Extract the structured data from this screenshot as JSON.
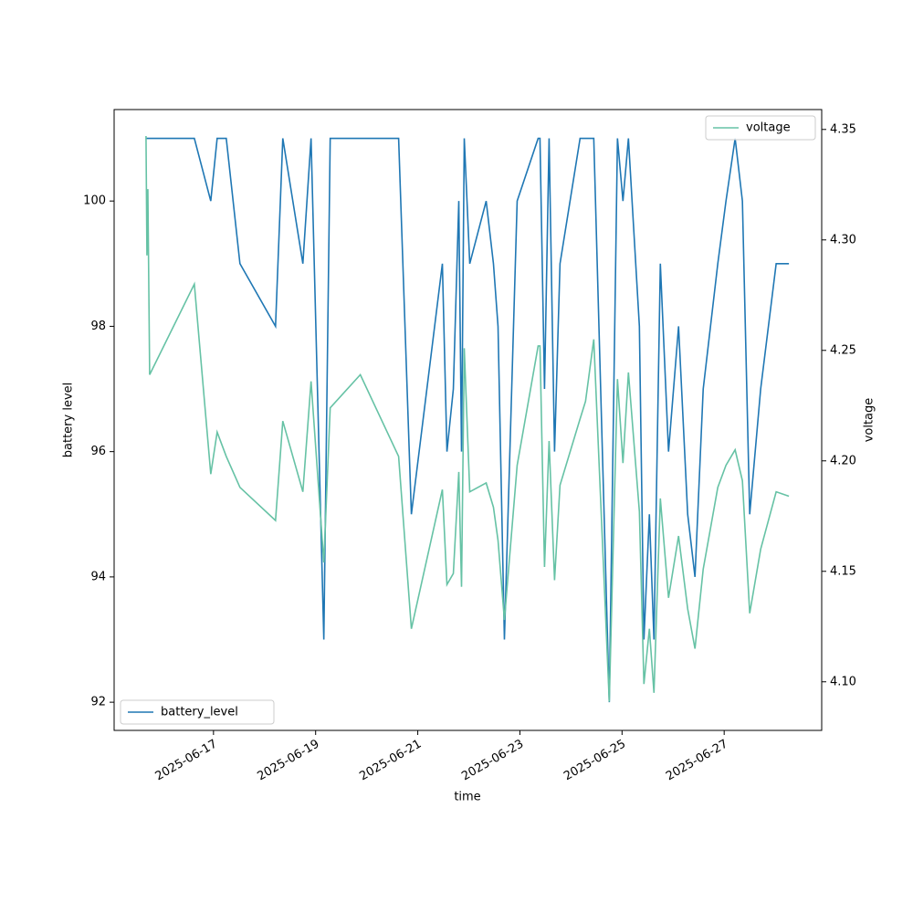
{
  "chart_data": {
    "type": "line",
    "xlabel": "time",
    "ylabel": "battery level",
    "y2label": "voltage",
    "x": [
      "2025-06-15T16:17",
      "2025-06-15T16:43",
      "2025-06-15T17:09",
      "2025-06-15T18:00",
      "2025-06-16T15:00",
      "2025-06-16T22:43",
      "2025-06-17T01:43",
      "2025-06-17T06:00",
      "2025-06-17T12:26",
      "2025-06-18T05:09",
      "2025-06-18T08:34",
      "2025-06-18T18:00",
      "2025-06-18T21:51",
      "2025-06-19T03:51",
      "2025-06-19T06:51",
      "2025-06-19T21:00",
      "2025-06-20T15:00",
      "2025-06-20T21:00",
      "2025-06-21T11:34",
      "2025-06-21T13:43",
      "2025-06-21T16:43",
      "2025-06-21T19:17",
      "2025-06-21T20:34",
      "2025-06-21T21:51",
      "2025-06-22T00:26",
      "2025-06-22T08:09",
      "2025-06-22T11:34",
      "2025-06-22T13:43",
      "2025-06-22T16:43",
      "2025-06-22T22:43",
      "2025-06-23T08:34",
      "2025-06-23T09:26",
      "2025-06-23T11:34",
      "2025-06-23T13:43",
      "2025-06-23T16:17",
      "2025-06-23T18:51",
      "2025-06-24T04:17",
      "2025-06-24T06:51",
      "2025-06-24T10:43",
      "2025-06-24T18:00",
      "2025-06-24T21:51",
      "2025-06-25T00:26",
      "2025-06-25T03:00",
      "2025-06-25T08:09",
      "2025-06-25T10:17",
      "2025-06-25T12:51",
      "2025-06-25T15:00",
      "2025-06-25T18:00",
      "2025-06-25T21:51",
      "2025-06-26T02:34",
      "2025-06-26T06:51",
      "2025-06-26T10:17",
      "2025-06-26T14:09",
      "2025-06-26T21:00",
      "2025-06-27T00:51",
      "2025-06-27T05:09",
      "2025-06-27T08:34",
      "2025-06-27T12:00",
      "2025-06-27T17:09",
      "2025-06-28T00:26",
      "2025-06-28T06:26"
    ],
    "series": [
      {
        "name": "battery_level",
        "color": "#1f77b4",
        "axis": "y",
        "legend": "lower left",
        "values": [
          101,
          101,
          101,
          101,
          101,
          100,
          101,
          101,
          99,
          98,
          101,
          99,
          101,
          93,
          101,
          101,
          101,
          95,
          99,
          96,
          97,
          100,
          96,
          101,
          99,
          100,
          99,
          98,
          93,
          100,
          101,
          101,
          97,
          101,
          96,
          99,
          101,
          101,
          101,
          92,
          101,
          100,
          101,
          98,
          93,
          95,
          93,
          99,
          96,
          98,
          95,
          94,
          97,
          99,
          100,
          101,
          100,
          95,
          97,
          99,
          99
        ]
      },
      {
        "name": "voltage",
        "color": "#66c2a5",
        "axis": "y2",
        "legend": "upper right",
        "values": [
          4.347,
          4.293,
          4.323,
          4.239,
          4.28,
          4.194,
          4.213,
          4.202,
          4.188,
          4.173,
          4.218,
          4.186,
          4.236,
          4.154,
          4.224,
          4.239,
          4.202,
          4.124,
          4.187,
          4.144,
          4.149,
          4.195,
          4.143,
          4.251,
          4.186,
          4.19,
          4.179,
          4.164,
          4.128,
          4.198,
          4.252,
          4.252,
          4.152,
          4.209,
          4.146,
          4.189,
          4.219,
          4.227,
          4.255,
          4.091,
          4.237,
          4.199,
          4.24,
          4.177,
          4.099,
          4.124,
          4.095,
          4.183,
          4.138,
          4.166,
          4.133,
          4.115,
          4.151,
          4.188,
          4.198,
          4.205,
          4.191,
          4.131,
          4.16,
          4.186,
          4.184
        ]
      }
    ],
    "xlim": [
      "2025-06-15T01:18",
      "2025-06-28T21:50"
    ],
    "xticks": [
      "2025-06-17",
      "2025-06-19",
      "2025-06-21",
      "2025-06-23",
      "2025-06-25",
      "2025-06-27"
    ],
    "ylim": [
      91.55,
      101.46
    ],
    "yticks": [
      92,
      94,
      96,
      98,
      100
    ],
    "y2lim": [
      4.078,
      4.359
    ],
    "y2ticks": [
      {
        "value": 4.1,
        "label": "4.10"
      },
      4.15,
      {
        "value": 4.2,
        "label": "4.20"
      },
      4.25,
      {
        "value": 4.3,
        "label": "4.30"
      },
      4.35
    ]
  }
}
